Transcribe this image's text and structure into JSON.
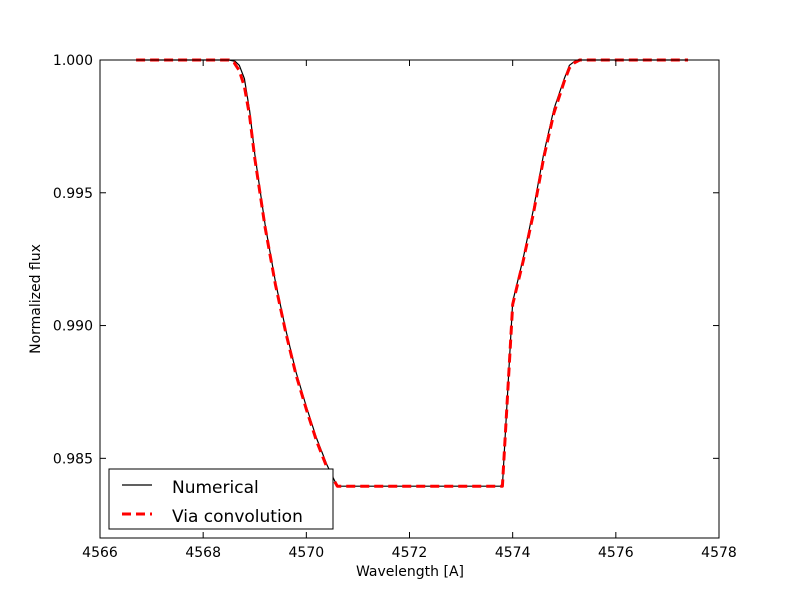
{
  "chart_data": {
    "type": "line",
    "title": "",
    "xlabel": "Wavelength [A]",
    "ylabel": "Normalized flux",
    "xlim": [
      4566,
      4578
    ],
    "ylim": [
      0.982,
      1.0
    ],
    "x_ticks": [
      4566,
      4568,
      4570,
      4572,
      4574,
      4576,
      4578
    ],
    "x_tick_labels": [
      "4566",
      "4568",
      "4570",
      "4572",
      "4574",
      "4576",
      "4578"
    ],
    "y_ticks": [
      0.985,
      0.99,
      0.995,
      1.0
    ],
    "y_tick_labels": [
      "0.985",
      "0.990",
      "0.995",
      "1.000"
    ],
    "grid": false,
    "legend_position": "lower-left",
    "series": [
      {
        "name": "Numerical",
        "color": "#000000",
        "style": "solid",
        "x": [
          4566.7,
          4567.5,
          4568.5,
          4568.62,
          4568.7,
          4568.8,
          4568.9,
          4569.0,
          4569.2,
          4569.4,
          4569.6,
          4569.8,
          4570.0,
          4570.2,
          4570.4,
          4570.6,
          4570.8,
          4571.0,
          4571.2,
          4571.4,
          4571.6,
          4571.8,
          4572.0,
          4572.2,
          4572.4,
          4572.6,
          4572.8,
          4573.0,
          4573.2,
          4573.4,
          4573.6,
          4573.8,
          4574.0,
          4574.2,
          4574.4,
          4574.6,
          4574.8,
          4575.0,
          4575.1,
          4575.2,
          4575.3,
          4575.38,
          4575.5,
          4576.5,
          4577.4
        ],
        "y": [
          1.0,
          1.0,
          1.0,
          0.99995,
          0.9998,
          0.9993,
          0.9981,
          0.99645,
          0.9938,
          0.99165,
          0.98985,
          0.98825,
          0.98695,
          0.98575,
          0.98475,
          0.98395,
          0.98395,
          0.98395,
          0.98395,
          0.98395,
          0.98395,
          0.98395,
          0.98395,
          0.98395,
          0.98395,
          0.98395,
          0.98395,
          0.98395,
          0.98395,
          0.98395,
          0.98395,
          0.98395,
          0.9909,
          0.9925,
          0.99435,
          0.99645,
          0.99815,
          0.9993,
          0.9998,
          0.99995,
          1.0,
          1.0,
          1.0,
          1.0,
          1.0
        ]
      },
      {
        "name": "Via convolution",
        "color": "#ff0000",
        "style": "dashed",
        "x": [
          4566.7,
          4567.5,
          4568.5,
          4568.6,
          4568.7,
          4568.8,
          4568.9,
          4569.0,
          4569.2,
          4569.4,
          4569.6,
          4569.8,
          4570.0,
          4570.2,
          4570.4,
          4570.6,
          4570.8,
          4571.0,
          4571.2,
          4571.4,
          4571.6,
          4571.8,
          4572.0,
          4572.2,
          4572.4,
          4572.6,
          4572.8,
          4573.0,
          4573.2,
          4573.4,
          4573.6,
          4573.8,
          4574.0,
          4574.2,
          4574.4,
          4574.6,
          4574.8,
          4575.0,
          4575.1,
          4575.2,
          4575.3,
          4575.4,
          4575.5,
          4576.5,
          4577.4
        ],
        "y": [
          1.0,
          1.0,
          1.0,
          0.9999,
          0.9996,
          0.999,
          0.9979,
          0.9963,
          0.9937,
          0.99155,
          0.98975,
          0.98815,
          0.98685,
          0.98565,
          0.98465,
          0.98395,
          0.98395,
          0.98395,
          0.98395,
          0.98395,
          0.98395,
          0.98395,
          0.98395,
          0.98395,
          0.98395,
          0.98395,
          0.98395,
          0.98395,
          0.98395,
          0.98395,
          0.98395,
          0.98395,
          0.9908,
          0.9924,
          0.9942,
          0.9963,
          0.998,
          0.9992,
          0.9997,
          0.9999,
          1.0,
          1.0,
          1.0,
          1.0,
          1.0
        ]
      }
    ]
  }
}
